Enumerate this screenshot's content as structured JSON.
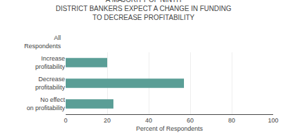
{
  "chart_data": {
    "type": "bar",
    "orientation": "horizontal",
    "title": "A MAJORITY OF NINTH\nDISTRICT BANKERS EXPECT A CHANGE IN FUNDING\nTO DECREASE PROFITABILITY",
    "categories": [
      "Increase\nprofitability",
      "Decrease\nprofitability",
      "No effect\non profitability"
    ],
    "values": [
      20,
      57,
      23
    ],
    "color": "#5a9e96",
    "xlabel": "Percent of Respondents",
    "xlim": [
      0,
      100
    ],
    "xticks": [
      0,
      20,
      40,
      60,
      80,
      100
    ],
    "grid": true,
    "annotation": "All\nRespondents"
  }
}
